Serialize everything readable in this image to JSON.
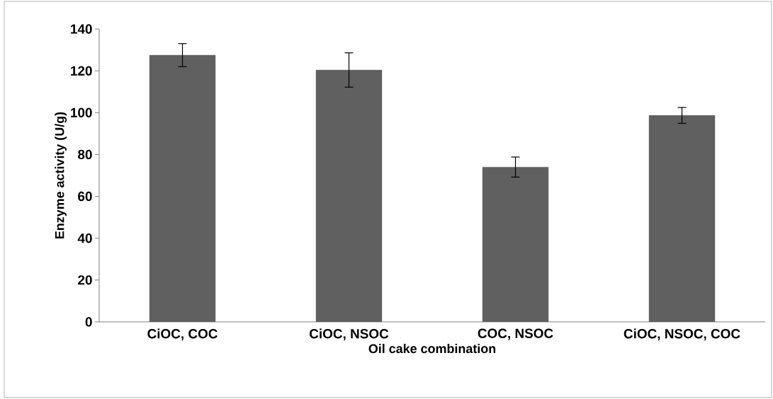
{
  "chart_data": {
    "type": "bar",
    "xlabel": "Oil cake combination",
    "ylabel": "Enzyme activity (U/g)",
    "categories": [
      "CiOC, COC",
      "CiOC, NSOC",
      "COC, NSOC",
      "CiOC, NSOC, COC"
    ],
    "values": [
      127.5,
      120.4,
      74.0,
      98.7
    ],
    "errors": [
      5.5,
      8.2,
      4.8,
      3.8
    ],
    "color": "#606060",
    "ylim": [
      0,
      140
    ],
    "yticks": [
      0,
      20,
      40,
      60,
      80,
      100,
      120,
      140
    ],
    "grid": false
  }
}
